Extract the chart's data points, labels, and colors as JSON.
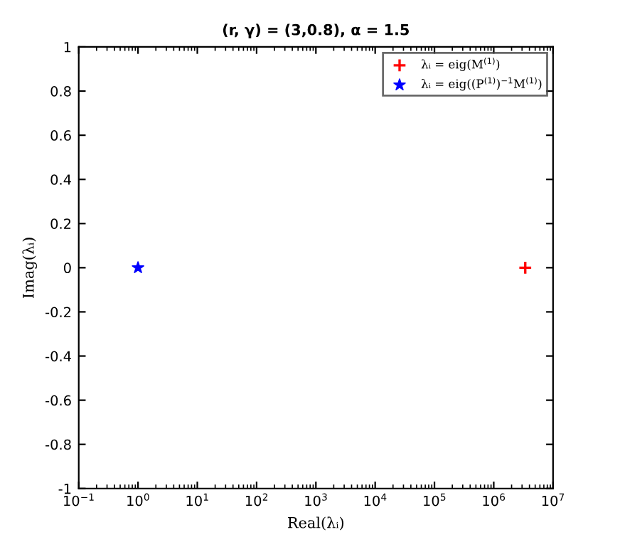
{
  "chart_data": {
    "type": "scatter",
    "title": "(r, γ) = (3,0.8), α = 1.5",
    "xlabel": "Real(λᵢ)",
    "ylabel": "Imag(λᵢ)",
    "log": "x",
    "xlim": [
      0.1,
      10000000
    ],
    "ylim": [
      -1,
      1
    ],
    "xticks": [
      {
        "value": 0.1,
        "label": "10$^{−1}$"
      },
      {
        "value": 1,
        "label": "10$^{0}$"
      },
      {
        "value": 10,
        "label": "10$^{1}$"
      },
      {
        "value": 100,
        "label": "10$^{2}$"
      },
      {
        "value": 1000,
        "label": "10$^{3}$"
      },
      {
        "value": 10000,
        "label": "10$^{4}$"
      },
      {
        "value": 100000,
        "label": "10$^{5}$"
      },
      {
        "value": 1000000,
        "label": "10$^{6}$"
      },
      {
        "value": 10000000,
        "label": "10$^{7}$"
      }
    ],
    "yticks": [
      -1,
      -0.8,
      -0.6,
      -0.4,
      -0.2,
      0,
      0.2,
      0.4,
      0.6,
      0.8,
      1
    ],
    "grid": false,
    "legend": "top right",
    "series": [
      {
        "name": "λᵢ = eig(M$^{(1)}$)",
        "color": "#ff0000",
        "marker": "cross",
        "x": [
          3400000
        ],
        "values": [
          0
        ]
      },
      {
        "name": "λᵢ = eig((P$^{(1)}$)$^{−1}$M$^{(1)}$)",
        "color": "#0000ff",
        "marker": "star",
        "x": [
          1
        ],
        "values": [
          0
        ]
      }
    ]
  }
}
